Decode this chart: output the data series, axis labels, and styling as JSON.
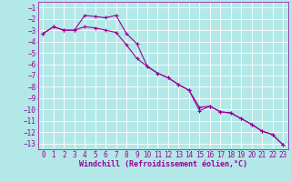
{
  "line1_x": [
    0,
    1,
    2,
    3,
    4,
    5,
    6,
    7,
    8,
    9,
    10,
    11,
    12,
    13,
    14,
    15,
    16,
    17,
    18,
    19,
    20,
    21,
    22,
    23
  ],
  "line1_y": [
    -3.3,
    -2.7,
    -3.0,
    -3.0,
    -1.7,
    -1.8,
    -1.9,
    -1.7,
    -3.3,
    -4.2,
    -6.2,
    -6.8,
    -7.2,
    -7.8,
    -8.3,
    -10.1,
    -9.7,
    -10.2,
    -10.3,
    -10.8,
    -11.3,
    -11.9,
    -12.2,
    -13.1
  ],
  "line2_x": [
    0,
    1,
    2,
    3,
    4,
    5,
    6,
    7,
    8,
    9,
    10,
    11,
    12,
    13,
    14,
    15,
    16,
    17,
    18,
    19,
    20,
    21,
    22,
    23
  ],
  "line2_y": [
    -3.3,
    -2.7,
    -3.0,
    -3.0,
    -2.7,
    -2.8,
    -3.0,
    -3.2,
    -4.3,
    -5.5,
    -6.2,
    -6.8,
    -7.2,
    -7.8,
    -8.3,
    -9.8,
    -9.7,
    -10.2,
    -10.3,
    -10.8,
    -11.3,
    -11.9,
    -12.2,
    -13.1
  ],
  "line_color": "#990099",
  "marker": "+",
  "bg_color": "#b3e8e8",
  "grid_color": "#ffffff",
  "xlabel": "Windchill (Refroidissement éolien,°C)",
  "ylim": [
    -13.5,
    -0.5
  ],
  "xlim": [
    -0.5,
    23.5
  ],
  "yticks": [
    -1,
    -2,
    -3,
    -4,
    -5,
    -6,
    -7,
    -8,
    -9,
    -10,
    -11,
    -12,
    -13
  ],
  "xticks": [
    0,
    1,
    2,
    3,
    4,
    5,
    6,
    7,
    8,
    9,
    10,
    11,
    12,
    13,
    14,
    15,
    16,
    17,
    18,
    19,
    20,
    21,
    22,
    23
  ],
  "tick_color": "#990099",
  "label_fontsize": 6,
  "tick_fontsize": 5.5
}
